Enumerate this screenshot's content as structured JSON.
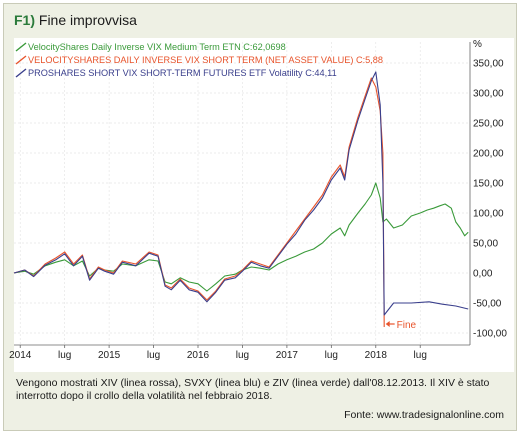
{
  "figure": {
    "label": "F1)",
    "title": "Fine improvvisa",
    "caption": "Vengono mostrati XIV (linea rossa), SVXY (linea blu) e ZIV (linea verde) dall'08.12.2013. Il XIV è stato interrotto dopo il crollo della volatilità nel febbraio 2018.",
    "source": "Fonte: www.tradesignalonline.com"
  },
  "chart_data": {
    "type": "line",
    "unit": "%",
    "ylim": [
      -120,
      385
    ],
    "yticks": [
      350,
      300,
      250,
      200,
      150,
      100,
      50,
      0,
      -50,
      -100
    ],
    "ytick_labels": [
      "350,00",
      "300,00",
      "250,00",
      "200,00",
      "150,00",
      "100,00",
      "50,00",
      "0,00",
      "-50,00",
      "-100,00"
    ],
    "xlim": [
      2013.93,
      2019.06
    ],
    "xticks": [
      {
        "x": 2014.0,
        "label": "2014"
      },
      {
        "x": 2014.5,
        "label": "lug"
      },
      {
        "x": 2015.0,
        "label": "2015"
      },
      {
        "x": 2015.5,
        "label": "lug"
      },
      {
        "x": 2016.0,
        "label": "2016"
      },
      {
        "x": 2016.5,
        "label": "lug"
      },
      {
        "x": 2017.0,
        "label": "2017"
      },
      {
        "x": 2017.5,
        "label": "lug"
      },
      {
        "x": 2018.0,
        "label": "2018"
      },
      {
        "x": 2018.5,
        "label": "lug"
      }
    ],
    "annotation": {
      "label": "Fine",
      "x": 2018.1,
      "y": -85
    },
    "series": [
      {
        "name": "VelocityShares Daily Inverse VIX Medium Term ETN",
        "legend_value": "C:62,0698",
        "color": "#3a9a3a",
        "points": [
          [
            2013.93,
            0
          ],
          [
            2014.05,
            3
          ],
          [
            2014.15,
            -2
          ],
          [
            2014.28,
            12
          ],
          [
            2014.4,
            18
          ],
          [
            2014.5,
            22
          ],
          [
            2014.6,
            12
          ],
          [
            2014.7,
            20
          ],
          [
            2014.78,
            -5
          ],
          [
            2014.88,
            8
          ],
          [
            2014.95,
            5
          ],
          [
            2015.05,
            3
          ],
          [
            2015.15,
            15
          ],
          [
            2015.3,
            12
          ],
          [
            2015.45,
            22
          ],
          [
            2015.55,
            20
          ],
          [
            2015.63,
            -15
          ],
          [
            2015.7,
            -18
          ],
          [
            2015.8,
            -8
          ],
          [
            2015.9,
            -15
          ],
          [
            2016.0,
            -18
          ],
          [
            2016.1,
            -30
          ],
          [
            2016.2,
            -18
          ],
          [
            2016.3,
            -5
          ],
          [
            2016.42,
            -2
          ],
          [
            2016.5,
            5
          ],
          [
            2016.6,
            10
          ],
          [
            2016.7,
            8
          ],
          [
            2016.8,
            5
          ],
          [
            2016.9,
            15
          ],
          [
            2017.0,
            22
          ],
          [
            2017.1,
            28
          ],
          [
            2017.2,
            35
          ],
          [
            2017.3,
            40
          ],
          [
            2017.4,
            50
          ],
          [
            2017.5,
            65
          ],
          [
            2017.6,
            75
          ],
          [
            2017.65,
            62
          ],
          [
            2017.7,
            80
          ],
          [
            2017.8,
            100
          ],
          [
            2017.88,
            115
          ],
          [
            2017.95,
            130
          ],
          [
            2018.0,
            150
          ],
          [
            2018.05,
            125
          ],
          [
            2018.08,
            85
          ],
          [
            2018.12,
            90
          ],
          [
            2018.2,
            75
          ],
          [
            2018.3,
            80
          ],
          [
            2018.4,
            95
          ],
          [
            2018.5,
            100
          ],
          [
            2018.58,
            105
          ],
          [
            2018.65,
            108
          ],
          [
            2018.72,
            112
          ],
          [
            2018.78,
            115
          ],
          [
            2018.85,
            108
          ],
          [
            2018.9,
            85
          ],
          [
            2018.95,
            75
          ],
          [
            2019.0,
            62
          ],
          [
            2019.04,
            68
          ]
        ]
      },
      {
        "name": "VELOCITYSHARES DAILY INVERSE VIX SHORT TERM (NET ASSET VALUE)",
        "legend_value": "C:5,88",
        "color": "#e8542c",
        "points": [
          [
            2013.93,
            0
          ],
          [
            2014.05,
            5
          ],
          [
            2014.15,
            -5
          ],
          [
            2014.28,
            15
          ],
          [
            2014.4,
            25
          ],
          [
            2014.5,
            35
          ],
          [
            2014.6,
            15
          ],
          [
            2014.7,
            30
          ],
          [
            2014.78,
            -10
          ],
          [
            2014.88,
            10
          ],
          [
            2014.95,
            5
          ],
          [
            2015.05,
            0
          ],
          [
            2015.15,
            20
          ],
          [
            2015.3,
            15
          ],
          [
            2015.45,
            35
          ],
          [
            2015.55,
            30
          ],
          [
            2015.63,
            -20
          ],
          [
            2015.7,
            -25
          ],
          [
            2015.8,
            -10
          ],
          [
            2015.9,
            -25
          ],
          [
            2016.0,
            -30
          ],
          [
            2016.1,
            -45
          ],
          [
            2016.2,
            -30
          ],
          [
            2016.3,
            -10
          ],
          [
            2016.42,
            -5
          ],
          [
            2016.5,
            5
          ],
          [
            2016.6,
            20
          ],
          [
            2016.7,
            15
          ],
          [
            2016.8,
            10
          ],
          [
            2016.9,
            30
          ],
          [
            2017.0,
            50
          ],
          [
            2017.1,
            70
          ],
          [
            2017.2,
            90
          ],
          [
            2017.3,
            110
          ],
          [
            2017.4,
            130
          ],
          [
            2017.5,
            160
          ],
          [
            2017.6,
            180
          ],
          [
            2017.65,
            160
          ],
          [
            2017.7,
            210
          ],
          [
            2017.8,
            260
          ],
          [
            2017.88,
            295
          ],
          [
            2017.95,
            325
          ],
          [
            2018.0,
            310
          ],
          [
            2018.05,
            270
          ],
          [
            2018.08,
            200
          ],
          [
            2018.095,
            -90
          ]
        ]
      },
      {
        "name": "PROSHARES SHORT VIX SHORT-TERM FUTURES ETF Volatility",
        "legend_value": "C:44,11",
        "color": "#3a3f8c",
        "points": [
          [
            2013.93,
            0
          ],
          [
            2014.05,
            5
          ],
          [
            2014.15,
            -6
          ],
          [
            2014.28,
            13
          ],
          [
            2014.4,
            22
          ],
          [
            2014.5,
            32
          ],
          [
            2014.6,
            12
          ],
          [
            2014.7,
            28
          ],
          [
            2014.78,
            -12
          ],
          [
            2014.88,
            8
          ],
          [
            2014.95,
            3
          ],
          [
            2015.05,
            -2
          ],
          [
            2015.15,
            18
          ],
          [
            2015.3,
            12
          ],
          [
            2015.45,
            33
          ],
          [
            2015.55,
            28
          ],
          [
            2015.63,
            -22
          ],
          [
            2015.7,
            -28
          ],
          [
            2015.8,
            -12
          ],
          [
            2015.9,
            -28
          ],
          [
            2016.0,
            -32
          ],
          [
            2016.1,
            -48
          ],
          [
            2016.2,
            -32
          ],
          [
            2016.3,
            -12
          ],
          [
            2016.42,
            -8
          ],
          [
            2016.5,
            3
          ],
          [
            2016.6,
            18
          ],
          [
            2016.7,
            12
          ],
          [
            2016.8,
            8
          ],
          [
            2016.9,
            28
          ],
          [
            2017.0,
            48
          ],
          [
            2017.1,
            65
          ],
          [
            2017.2,
            88
          ],
          [
            2017.3,
            105
          ],
          [
            2017.4,
            125
          ],
          [
            2017.5,
            155
          ],
          [
            2017.6,
            175
          ],
          [
            2017.65,
            155
          ],
          [
            2017.7,
            205
          ],
          [
            2017.8,
            255
          ],
          [
            2017.88,
            290
          ],
          [
            2017.95,
            320
          ],
          [
            2018.0,
            335
          ],
          [
            2018.05,
            280
          ],
          [
            2018.08,
            150
          ],
          [
            2018.095,
            -70
          ],
          [
            2018.2,
            -50
          ],
          [
            2018.4,
            -50
          ],
          [
            2018.6,
            -48
          ],
          [
            2018.75,
            -52
          ],
          [
            2018.9,
            -55
          ],
          [
            2019.04,
            -60
          ]
        ]
      }
    ]
  }
}
